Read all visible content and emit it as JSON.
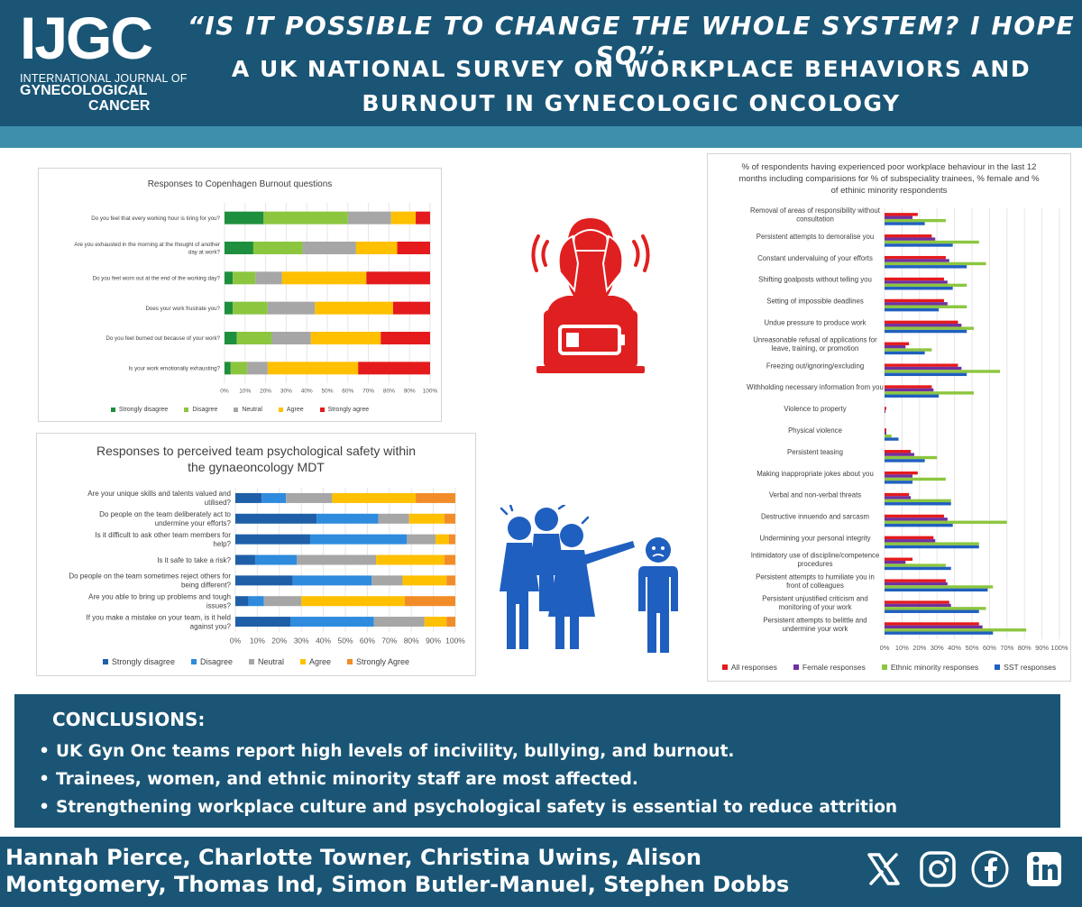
{
  "header": {
    "logo_main": "IJGC",
    "logo_sub1": "INTERNATIONAL JOURNAL OF",
    "logo_sub2": "GYNECOLOGICAL",
    "logo_sub3": "CANCER",
    "title_line1": "“IS IT POSSIBLE TO CHANGE THE WHOLE SYSTEM? I HOPE SO”:",
    "title_line2": "A UK NATIONAL SURVEY ON WORKPLACE BEHAVIORS AND",
    "title_line3": "BURNOUT IN GYNECOLOGIC ONCOLOGY"
  },
  "colors": {
    "header_bg": "#1a5575",
    "stripe": "#3d8fab",
    "icon_red": "#e02020",
    "icon_blue": "#1f5fbf"
  },
  "icons": {
    "burnout": "burnout-person-laptop-icon",
    "bullying": "bullying-group-pointing-icon"
  },
  "chart_data": [
    {
      "type": "bar",
      "orientation": "horizontal",
      "stacked": "100%",
      "title": "Responses to Copenhagen Burnout questions",
      "categories": [
        "Do you feel that every working hour is tiring for you?",
        "Are you exhausted in the morning at the thought of another day at work?",
        "Do you feel worn out at the end of the working day?",
        "Does your work frustrate you?",
        "Do you feel burned out because of your work?",
        "Is your work emotionally exhausting?"
      ],
      "series": [
        {
          "name": "Strongly disagree",
          "color": "#1e8f3e",
          "values": [
            19,
            14,
            4,
            4,
            6,
            3
          ]
        },
        {
          "name": "Disagree",
          "color": "#8cc63f",
          "values": [
            41,
            24,
            11,
            17,
            17,
            8
          ]
        },
        {
          "name": "Neutral",
          "color": "#a6a6a6",
          "values": [
            21,
            26,
            13,
            23,
            19,
            10
          ]
        },
        {
          "name": "Agree",
          "color": "#ffc000",
          "values": [
            12,
            20,
            41,
            38,
            34,
            44
          ]
        },
        {
          "name": "Strongly agree",
          "color": "#e41a1c",
          "values": [
            7,
            16,
            31,
            18,
            24,
            35
          ]
        }
      ],
      "xticks": [
        "0%",
        "10%",
        "20%",
        "30%",
        "40%",
        "50%",
        "60%",
        "70%",
        "80%",
        "90%",
        "100%"
      ],
      "xlim": [
        0,
        100
      ],
      "legend": "bottom"
    },
    {
      "type": "bar",
      "orientation": "horizontal",
      "stacked": "100%",
      "title": "Responses to perceived team psychological safety within the gynaeoncology MDT",
      "categories": [
        "Are your unique skills and talents valued and utilised?",
        "Do people on the team deliberately act to undermine your efforts?",
        "Is it difficult to ask other team members for help?",
        "Is it safe to take a risk?",
        "Do people on the team sometimes reject others for being different?",
        "Are you able to bring up problems and tough issues?",
        "If you make a mistake on your team, is it held against you?"
      ],
      "series": [
        {
          "name": "Strongly disagree",
          "color": "#1f5fa8",
          "values": [
            12,
            37,
            34,
            9,
            26,
            6,
            25
          ]
        },
        {
          "name": "Disagree",
          "color": "#2e8bde",
          "values": [
            11,
            28,
            44,
            19,
            36,
            7,
            38
          ]
        },
        {
          "name": "Neutral",
          "color": "#a6a6a6",
          "values": [
            21,
            14,
            13,
            36,
            14,
            17,
            23
          ]
        },
        {
          "name": "Agree",
          "color": "#ffc000",
          "values": [
            38,
            16,
            6,
            31,
            20,
            47,
            10
          ]
        },
        {
          "name": "Strongly Agree",
          "color": "#f28c28",
          "values": [
            18,
            5,
            3,
            5,
            4,
            23,
            4
          ]
        }
      ],
      "xticks": [
        "0%",
        "10%",
        "20%",
        "30%",
        "40%",
        "50%",
        "60%",
        "70%",
        "80%",
        "90%",
        "100%"
      ],
      "xlim": [
        0,
        100
      ],
      "legend": "bottom"
    },
    {
      "type": "bar",
      "orientation": "horizontal",
      "grouped": true,
      "title": "% of respondents having experienced poor workplace behaviour in the last 12 months including comparisions for % of subspeciality trainees, % female and % of ethinic minority respondents",
      "categories": [
        "Removal of areas of responsibility without consultation",
        "Persistent attempts to demoralise you",
        "Constant undervaluing of your efforts",
        "Shifting goalposts without telling you",
        "Setting of impossible deadlines",
        "Undue pressure to produce work",
        "Unreasonable refusal of applications for leave, training, or promotion",
        "Freezing out/ignoring/excluding",
        "Withholding necessary information from you",
        "Violence to property",
        "Physical violence",
        "Persistent teasing",
        "Making inappropriate jokes about you",
        "Verbal and non-verbal threats",
        "Destructive innuendo and sarcasm",
        "Undermining your personal integrity",
        "Intimidatory use of discipline/competence procedures",
        "Persistent attempts to humiliate you in front of colleagues",
        "Persistent unjustified criticism and monitoring of your work",
        "Persistent attempts to belittle and undermine your work"
      ],
      "series": [
        {
          "name": "All responses",
          "color": "#e41a1c",
          "values": [
            19,
            27,
            35,
            34,
            34,
            42,
            14,
            42,
            27,
            1,
            1,
            15,
            19,
            14,
            34,
            28,
            16,
            35,
            37,
            54
          ]
        },
        {
          "name": "Female responses",
          "color": "#7030a0",
          "values": [
            16,
            29,
            37,
            36,
            36,
            44,
            12,
            44,
            28,
            0.5,
            1,
            17,
            16,
            15,
            36,
            29,
            12,
            36,
            38,
            56
          ]
        },
        {
          "name": "Ethnic minority responses",
          "color": "#8cc63f",
          "values": [
            35,
            54,
            58,
            47,
            47,
            51,
            27,
            66,
            51,
            0,
            4,
            30,
            35,
            38,
            70,
            54,
            35,
            62,
            58,
            81
          ]
        },
        {
          "name": "SST responses",
          "color": "#1f5fbf",
          "values": [
            23,
            39,
            47,
            39,
            31,
            47,
            23,
            47,
            31,
            0,
            8,
            23,
            16,
            38,
            39,
            54,
            38,
            59,
            54,
            62
          ]
        }
      ],
      "xticks": [
        "0%",
        "10%",
        "20%",
        "30%",
        "40%",
        "50%",
        "60%",
        "70%",
        "80%",
        "90%",
        "100%"
      ],
      "xlim": [
        0,
        100
      ],
      "legend": "bottom"
    }
  ],
  "conclusions": {
    "heading": "CONCLUSIONS:",
    "bullet": "•",
    "items": [
      "UK Gyn Onc teams report high levels of incivility, bullying, and burnout.",
      "Trainees, women, and ethnic minority staff are most affected.",
      "Strengthening workplace culture and psychological safety is essential to reduce attrition"
    ]
  },
  "footer": {
    "authors_line1": "Hannah Pierce, Charlotte Towner, Christina Uwins, Alison",
    "authors_line2": "Montgomery, Thomas Ind, Simon Butler-Manuel, Stephen Dobbs",
    "social": {
      "x": "X",
      "instagram": "instagram",
      "facebook": "f",
      "linkedin": "in"
    }
  }
}
